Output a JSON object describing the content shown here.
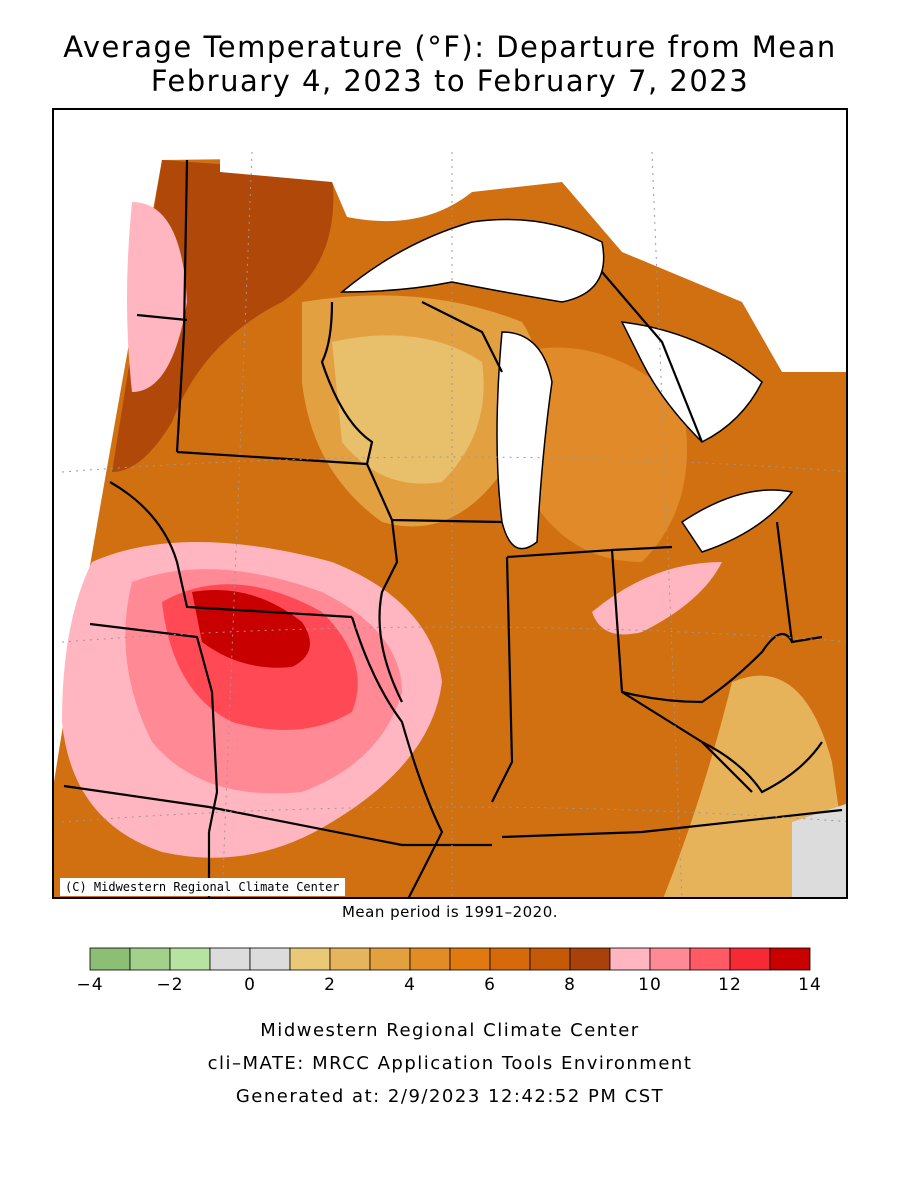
{
  "title_line1": "Average Temperature (°F): Departure from Mean",
  "title_line2": "February 4, 2023 to February 7, 2023",
  "copyright": "(C) Midwestern Regional Climate Center",
  "mean_period": "Mean period is 1991–2020.",
  "legend": {
    "colors": [
      "#8cbf73",
      "#a3d18c",
      "#b6e3a0",
      "#dcdcdc",
      "#dcdcdc",
      "#e9c878",
      "#e5b45c",
      "#e3a03f",
      "#e18c25",
      "#e07a10",
      "#d66a0a",
      "#c45a08",
      "#a8420a",
      "#ffb6c1",
      "#ff8a95",
      "#ff5a66",
      "#f52a35",
      "#c80000"
    ],
    "tick_labels": [
      "−4",
      "−2",
      "0",
      "2",
      "4",
      "6",
      "8",
      "10",
      "12",
      "14"
    ]
  },
  "footer_line1": "Midwestern Regional Climate Center",
  "footer_line2": "cli–MATE: MRCC Application Tools Environment",
  "footer_line3": "Generated at: 2/9/2023 12:42:52 PM CST"
}
